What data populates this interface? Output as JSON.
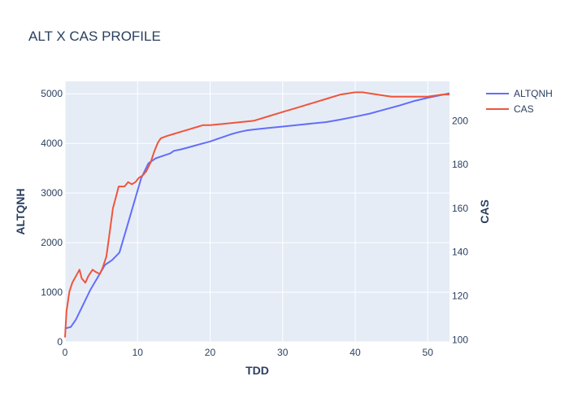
{
  "chart_data": {
    "type": "line",
    "title": "ALT X CAS PROFILE",
    "xlabel": "TDD",
    "ylabel_left": "ALTQNH",
    "ylabel_right": "CAS",
    "xlim": [
      0,
      53
    ],
    "ylim_left": [
      0,
      5250
    ],
    "ylim_right": [
      99,
      218
    ],
    "x_ticks": [
      0,
      10,
      20,
      30,
      40,
      50
    ],
    "y_left_ticks": [
      0,
      1000,
      2000,
      3000,
      4000,
      5000
    ],
    "y_right_ticks": [
      100,
      120,
      140,
      160,
      180,
      200
    ],
    "grid": true,
    "legend_position": "top-right",
    "colors": {
      "ALTQNH": "#636efa",
      "CAS": "#ef553b",
      "plot_bg": "#e5ecf6"
    },
    "series": [
      {
        "name": "ALTQNH",
        "axis": "left",
        "x": [
          0,
          0.8,
          1.5,
          2.5,
          3.5,
          4.5,
          5.5,
          6.5,
          7.5,
          8.5,
          9.5,
          10.5,
          11.5,
          12.5,
          13.5,
          14.5,
          15,
          16,
          17,
          18,
          19,
          20,
          21,
          22,
          23,
          24,
          25,
          26,
          28,
          30,
          32,
          34,
          36,
          38,
          40,
          42,
          44,
          46,
          48,
          50,
          52,
          53
        ],
        "y": [
          270,
          300,
          450,
          750,
          1050,
          1300,
          1550,
          1650,
          1800,
          2300,
          2800,
          3300,
          3600,
          3700,
          3750,
          3800,
          3850,
          3880,
          3920,
          3960,
          4000,
          4040,
          4090,
          4140,
          4190,
          4230,
          4260,
          4280,
          4310,
          4340,
          4370,
          4400,
          4430,
          4480,
          4540,
          4600,
          4680,
          4760,
          4850,
          4920,
          4980,
          5010
        ]
      },
      {
        "name": "CAS",
        "axis": "right",
        "x": [
          0,
          0.2,
          0.6,
          1.0,
          1.5,
          2.0,
          2.3,
          2.8,
          3.2,
          3.8,
          4.2,
          4.8,
          5.2,
          5.7,
          6.2,
          6.6,
          7.0,
          7.4,
          7.7,
          8.2,
          8.7,
          9.2,
          9.7,
          10.2,
          10.7,
          11.2,
          11.8,
          12.3,
          12.8,
          13.2,
          14,
          15,
          16,
          17,
          18,
          19,
          20,
          23,
          26,
          28,
          30,
          32,
          34,
          36,
          38,
          40,
          41,
          43,
          45,
          48,
          50,
          52,
          53
        ],
        "y": [
          101,
          113,
          122,
          126,
          129,
          132,
          128,
          126,
          129,
          132,
          131,
          130,
          133,
          138,
          150,
          160,
          165,
          170,
          170,
          170,
          172,
          171,
          172,
          174,
          175,
          177,
          181,
          186,
          190,
          192,
          193,
          194,
          195,
          196,
          197,
          198,
          198,
          199,
          200,
          202,
          204,
          206,
          208,
          210,
          212,
          213,
          213,
          212,
          211,
          211,
          211,
          212,
          212
        ]
      }
    ]
  }
}
